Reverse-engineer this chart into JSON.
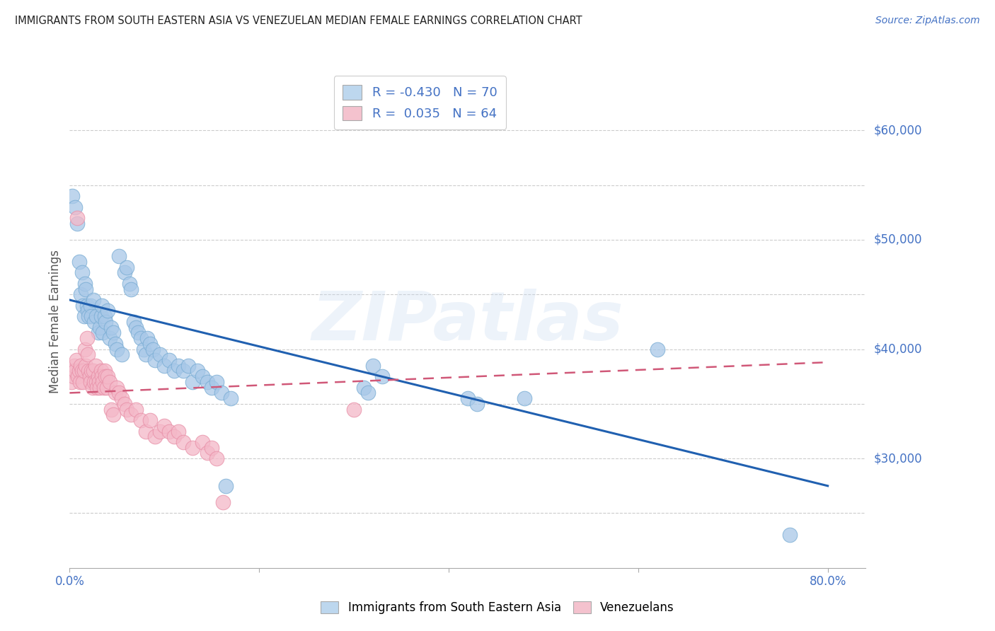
{
  "title": "IMMIGRANTS FROM SOUTH EASTERN ASIA VS VENEZUELAN MEDIAN FEMALE EARNINGS CORRELATION CHART",
  "source": "Source: ZipAtlas.com",
  "ylabel": "Median Female Earnings",
  "legend_label1": "Immigrants from South Eastern Asia",
  "legend_label2": "Venezuelans",
  "watermark": "ZIPatlas",
  "blue_color": "#a8c8e8",
  "blue_edge": "#7aadd4",
  "pink_color": "#f4b8c8",
  "pink_edge": "#e890a8",
  "trend_blue": "#2060b0",
  "trend_pink": "#d05878",
  "background": "#ffffff",
  "grid_color": "#cccccc",
  "title_color": "#222222",
  "axis_label_color": "#4472c4",
  "right_label_color": "#4472c4",
  "xlim": [
    0.0,
    0.84
  ],
  "ylim": [
    20000,
    65000
  ],
  "y_gridlines": [
    25000,
    30000,
    35000,
    40000,
    45000,
    50000,
    55000,
    60000
  ],
  "y_right_labels": [
    [
      30000,
      "$30,000"
    ],
    [
      40000,
      "$40,000"
    ],
    [
      50000,
      "$50,000"
    ],
    [
      60000,
      "$60,000"
    ]
  ],
  "x_tick_positions": [
    0.0,
    0.2,
    0.4,
    0.6,
    0.8
  ],
  "blue_trend_x": [
    0.0,
    0.8
  ],
  "blue_trend_y": [
    44500,
    27500
  ],
  "pink_trend_x": [
    0.0,
    0.8
  ],
  "pink_trend_y": [
    36000,
    38800
  ],
  "blue_scatter": [
    [
      0.003,
      54000
    ],
    [
      0.006,
      53000
    ],
    [
      0.008,
      51500
    ],
    [
      0.01,
      48000
    ],
    [
      0.012,
      45000
    ],
    [
      0.013,
      47000
    ],
    [
      0.014,
      44000
    ],
    [
      0.015,
      43000
    ],
    [
      0.016,
      46000
    ],
    [
      0.017,
      45500
    ],
    [
      0.018,
      44000
    ],
    [
      0.019,
      43500
    ],
    [
      0.02,
      43000
    ],
    [
      0.022,
      44000
    ],
    [
      0.023,
      43000
    ],
    [
      0.025,
      44500
    ],
    [
      0.026,
      42500
    ],
    [
      0.028,
      43000
    ],
    [
      0.03,
      41500
    ],
    [
      0.032,
      42000
    ],
    [
      0.033,
      43000
    ],
    [
      0.034,
      44000
    ],
    [
      0.035,
      41500
    ],
    [
      0.037,
      43000
    ],
    [
      0.038,
      42500
    ],
    [
      0.04,
      43500
    ],
    [
      0.042,
      41000
    ],
    [
      0.044,
      42000
    ],
    [
      0.046,
      41500
    ],
    [
      0.048,
      40500
    ],
    [
      0.05,
      40000
    ],
    [
      0.052,
      48500
    ],
    [
      0.055,
      39500
    ],
    [
      0.058,
      47000
    ],
    [
      0.06,
      47500
    ],
    [
      0.063,
      46000
    ],
    [
      0.065,
      45500
    ],
    [
      0.068,
      42500
    ],
    [
      0.07,
      42000
    ],
    [
      0.072,
      41500
    ],
    [
      0.075,
      41000
    ],
    [
      0.078,
      40000
    ],
    [
      0.08,
      39500
    ],
    [
      0.082,
      41000
    ],
    [
      0.085,
      40500
    ],
    [
      0.088,
      40000
    ],
    [
      0.09,
      39000
    ],
    [
      0.095,
      39500
    ],
    [
      0.1,
      38500
    ],
    [
      0.105,
      39000
    ],
    [
      0.11,
      38000
    ],
    [
      0.115,
      38500
    ],
    [
      0.12,
      38000
    ],
    [
      0.125,
      38500
    ],
    [
      0.13,
      37000
    ],
    [
      0.135,
      38000
    ],
    [
      0.14,
      37500
    ],
    [
      0.145,
      37000
    ],
    [
      0.15,
      36500
    ],
    [
      0.155,
      37000
    ],
    [
      0.16,
      36000
    ],
    [
      0.165,
      27500
    ],
    [
      0.17,
      35500
    ],
    [
      0.31,
      36500
    ],
    [
      0.315,
      36000
    ],
    [
      0.32,
      38500
    ],
    [
      0.33,
      37500
    ],
    [
      0.42,
      35500
    ],
    [
      0.43,
      35000
    ],
    [
      0.48,
      35500
    ],
    [
      0.62,
      40000
    ],
    [
      0.76,
      23000
    ]
  ],
  "pink_scatter": [
    [
      0.002,
      37000
    ],
    [
      0.003,
      38000
    ],
    [
      0.004,
      37500
    ],
    [
      0.005,
      38500
    ],
    [
      0.006,
      38000
    ],
    [
      0.007,
      39000
    ],
    [
      0.008,
      52000
    ],
    [
      0.009,
      37500
    ],
    [
      0.01,
      38000
    ],
    [
      0.011,
      37000
    ],
    [
      0.012,
      38500
    ],
    [
      0.013,
      38000
    ],
    [
      0.014,
      37000
    ],
    [
      0.015,
      38000
    ],
    [
      0.016,
      40000
    ],
    [
      0.017,
      38500
    ],
    [
      0.018,
      41000
    ],
    [
      0.019,
      39500
    ],
    [
      0.02,
      38000
    ],
    [
      0.021,
      37500
    ],
    [
      0.022,
      37000
    ],
    [
      0.023,
      38000
    ],
    [
      0.024,
      36500
    ],
    [
      0.025,
      38000
    ],
    [
      0.026,
      37000
    ],
    [
      0.027,
      38500
    ],
    [
      0.028,
      37000
    ],
    [
      0.029,
      36500
    ],
    [
      0.03,
      37500
    ],
    [
      0.031,
      37000
    ],
    [
      0.032,
      36500
    ],
    [
      0.033,
      38000
    ],
    [
      0.034,
      37500
    ],
    [
      0.035,
      37000
    ],
    [
      0.036,
      36500
    ],
    [
      0.037,
      38000
    ],
    [
      0.038,
      37500
    ],
    [
      0.039,
      36500
    ],
    [
      0.04,
      37500
    ],
    [
      0.042,
      37000
    ],
    [
      0.044,
      34500
    ],
    [
      0.046,
      34000
    ],
    [
      0.048,
      36000
    ],
    [
      0.05,
      36500
    ],
    [
      0.052,
      36000
    ],
    [
      0.055,
      35500
    ],
    [
      0.058,
      35000
    ],
    [
      0.06,
      34500
    ],
    [
      0.065,
      34000
    ],
    [
      0.07,
      34500
    ],
    [
      0.075,
      33500
    ],
    [
      0.08,
      32500
    ],
    [
      0.085,
      33500
    ],
    [
      0.09,
      32000
    ],
    [
      0.095,
      32500
    ],
    [
      0.1,
      33000
    ],
    [
      0.105,
      32500
    ],
    [
      0.11,
      32000
    ],
    [
      0.115,
      32500
    ],
    [
      0.12,
      31500
    ],
    [
      0.13,
      31000
    ],
    [
      0.14,
      31500
    ],
    [
      0.145,
      30500
    ],
    [
      0.15,
      31000
    ],
    [
      0.155,
      30000
    ],
    [
      0.162,
      26000
    ],
    [
      0.3,
      34500
    ]
  ]
}
